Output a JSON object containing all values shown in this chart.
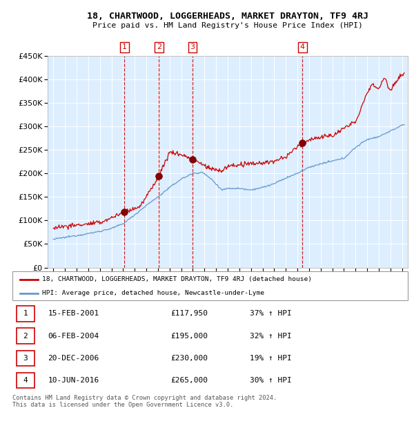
{
  "title": "18, CHARTWOOD, LOGGERHEADS, MARKET DRAYTON, TF9 4RJ",
  "subtitle": "Price paid vs. HM Land Registry's House Price Index (HPI)",
  "legend_line1": "18, CHARTWOOD, LOGGERHEADS, MARKET DRAYTON, TF9 4RJ (detached house)",
  "legend_line2": "HPI: Average price, detached house, Newcastle-under-Lyme",
  "footer": "Contains HM Land Registry data © Crown copyright and database right 2024.\nThis data is licensed under the Open Government Licence v3.0.",
  "red_color": "#cc0000",
  "blue_color": "#6699cc",
  "bg_color": "#ddeeff",
  "sale_years": [
    2001.12,
    2004.09,
    2006.96,
    2016.44
  ],
  "sale_prices": [
    117950,
    195000,
    230000,
    265000
  ],
  "sale_labels": [
    "1",
    "2",
    "3",
    "4"
  ],
  "table_rows": [
    [
      "1",
      "15-FEB-2001",
      "£117,950",
      "37% ↑ HPI"
    ],
    [
      "2",
      "06-FEB-2004",
      "£195,000",
      "32% ↑ HPI"
    ],
    [
      "3",
      "20-DEC-2006",
      "£230,000",
      "19% ↑ HPI"
    ],
    [
      "4",
      "10-JUN-2016",
      "£265,000",
      "30% ↑ HPI"
    ]
  ],
  "ylim": [
    0,
    450000
  ],
  "yticks": [
    0,
    50000,
    100000,
    150000,
    200000,
    250000,
    300000,
    350000,
    400000,
    450000
  ],
  "xlim_start": 1994.5,
  "xlim_end": 2025.5,
  "hpi_anchors_t": [
    1995.0,
    1996.0,
    1997.0,
    1998.0,
    1999.0,
    2000.0,
    2001.0,
    2002.0,
    2003.0,
    2004.0,
    2005.0,
    2006.0,
    2007.0,
    2007.8,
    2008.5,
    2009.5,
    2010.0,
    2011.0,
    2012.0,
    2013.0,
    2014.0,
    2015.0,
    2016.0,
    2017.0,
    2018.0,
    2019.0,
    2020.0,
    2021.0,
    2022.0,
    2023.0,
    2024.0,
    2025.0
  ],
  "hpi_anchors_v": [
    60000,
    64000,
    68000,
    72000,
    77000,
    83000,
    93000,
    112000,
    132000,
    150000,
    170000,
    188000,
    200000,
    202000,
    190000,
    165000,
    168000,
    168000,
    165000,
    170000,
    178000,
    190000,
    200000,
    213000,
    220000,
    226000,
    232000,
    255000,
    272000,
    278000,
    290000,
    302000
  ],
  "prop_anchors_t": [
    1995.0,
    1999.0,
    2001.12,
    2002.5,
    2004.09,
    2005.0,
    2006.0,
    2006.96,
    2008.5,
    2009.5,
    2010.0,
    2012.0,
    2014.0,
    2015.0,
    2016.44,
    2017.5,
    2019.0,
    2020.0,
    2021.0,
    2022.0,
    2022.5,
    2023.0,
    2023.5,
    2024.0,
    2024.5,
    2025.0
  ],
  "prop_anchors_v": [
    85000,
    95000,
    117950,
    130000,
    195000,
    245000,
    240000,
    230000,
    210000,
    205000,
    215000,
    220000,
    225000,
    235000,
    265000,
    275000,
    280000,
    295000,
    310000,
    370000,
    390000,
    380000,
    405000,
    375000,
    395000,
    410000
  ]
}
